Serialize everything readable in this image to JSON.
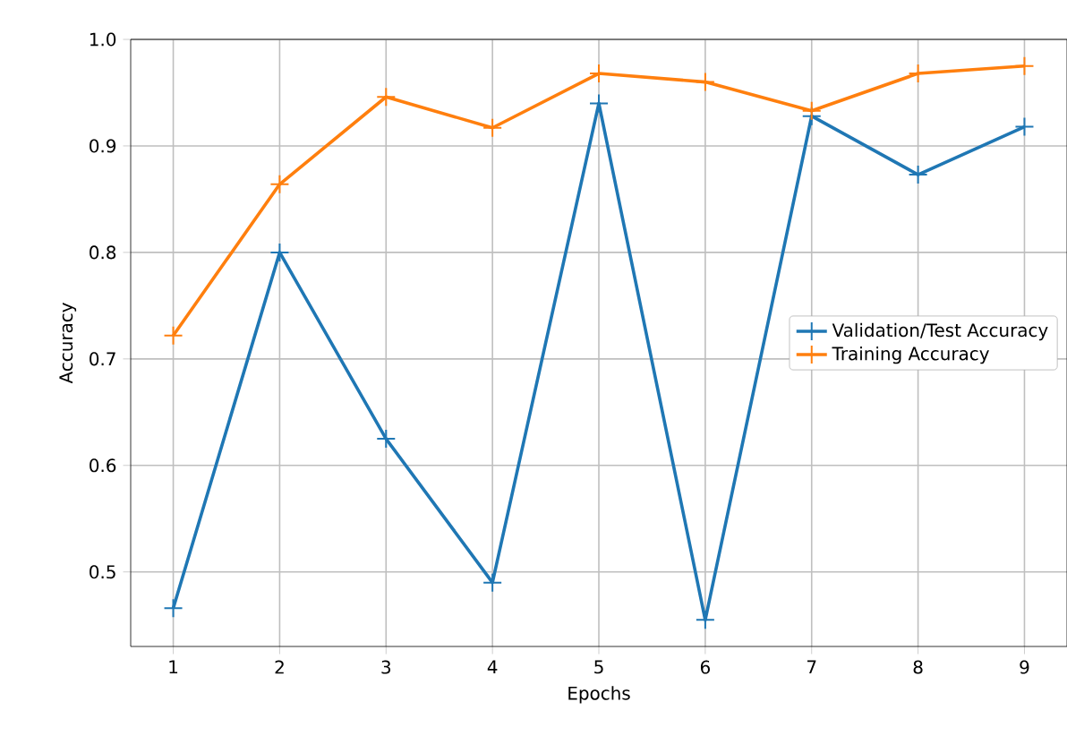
{
  "chart_data": {
    "type": "line",
    "xlabel": "Epochs",
    "ylabel": "Accuracy",
    "x": [
      1,
      2,
      3,
      4,
      5,
      6,
      7,
      8,
      9
    ],
    "series": [
      {
        "name": "Validation/Test Accuracy",
        "color": "#1f77b4",
        "values": [
          0.466,
          0.8,
          0.625,
          0.49,
          0.94,
          0.455,
          0.928,
          0.873,
          0.918
        ]
      },
      {
        "name": "Training Accuracy",
        "color": "#ff7f0e",
        "values": [
          0.722,
          0.864,
          0.946,
          0.917,
          0.968,
          0.96,
          0.933,
          0.968,
          0.975
        ]
      }
    ],
    "xlim": [
      0.6,
      9.4
    ],
    "ylim": [
      0.43,
      1.0
    ],
    "xticks": [
      1,
      2,
      3,
      4,
      5,
      6,
      7,
      8,
      9
    ],
    "yticks": [
      0.5,
      0.6,
      0.7,
      0.8,
      0.9,
      {
        "value": 1.0,
        "label": "1.0"
      }
    ],
    "marker": "cross",
    "grid": true,
    "legend": "right",
    "line_style": "solid"
  }
}
